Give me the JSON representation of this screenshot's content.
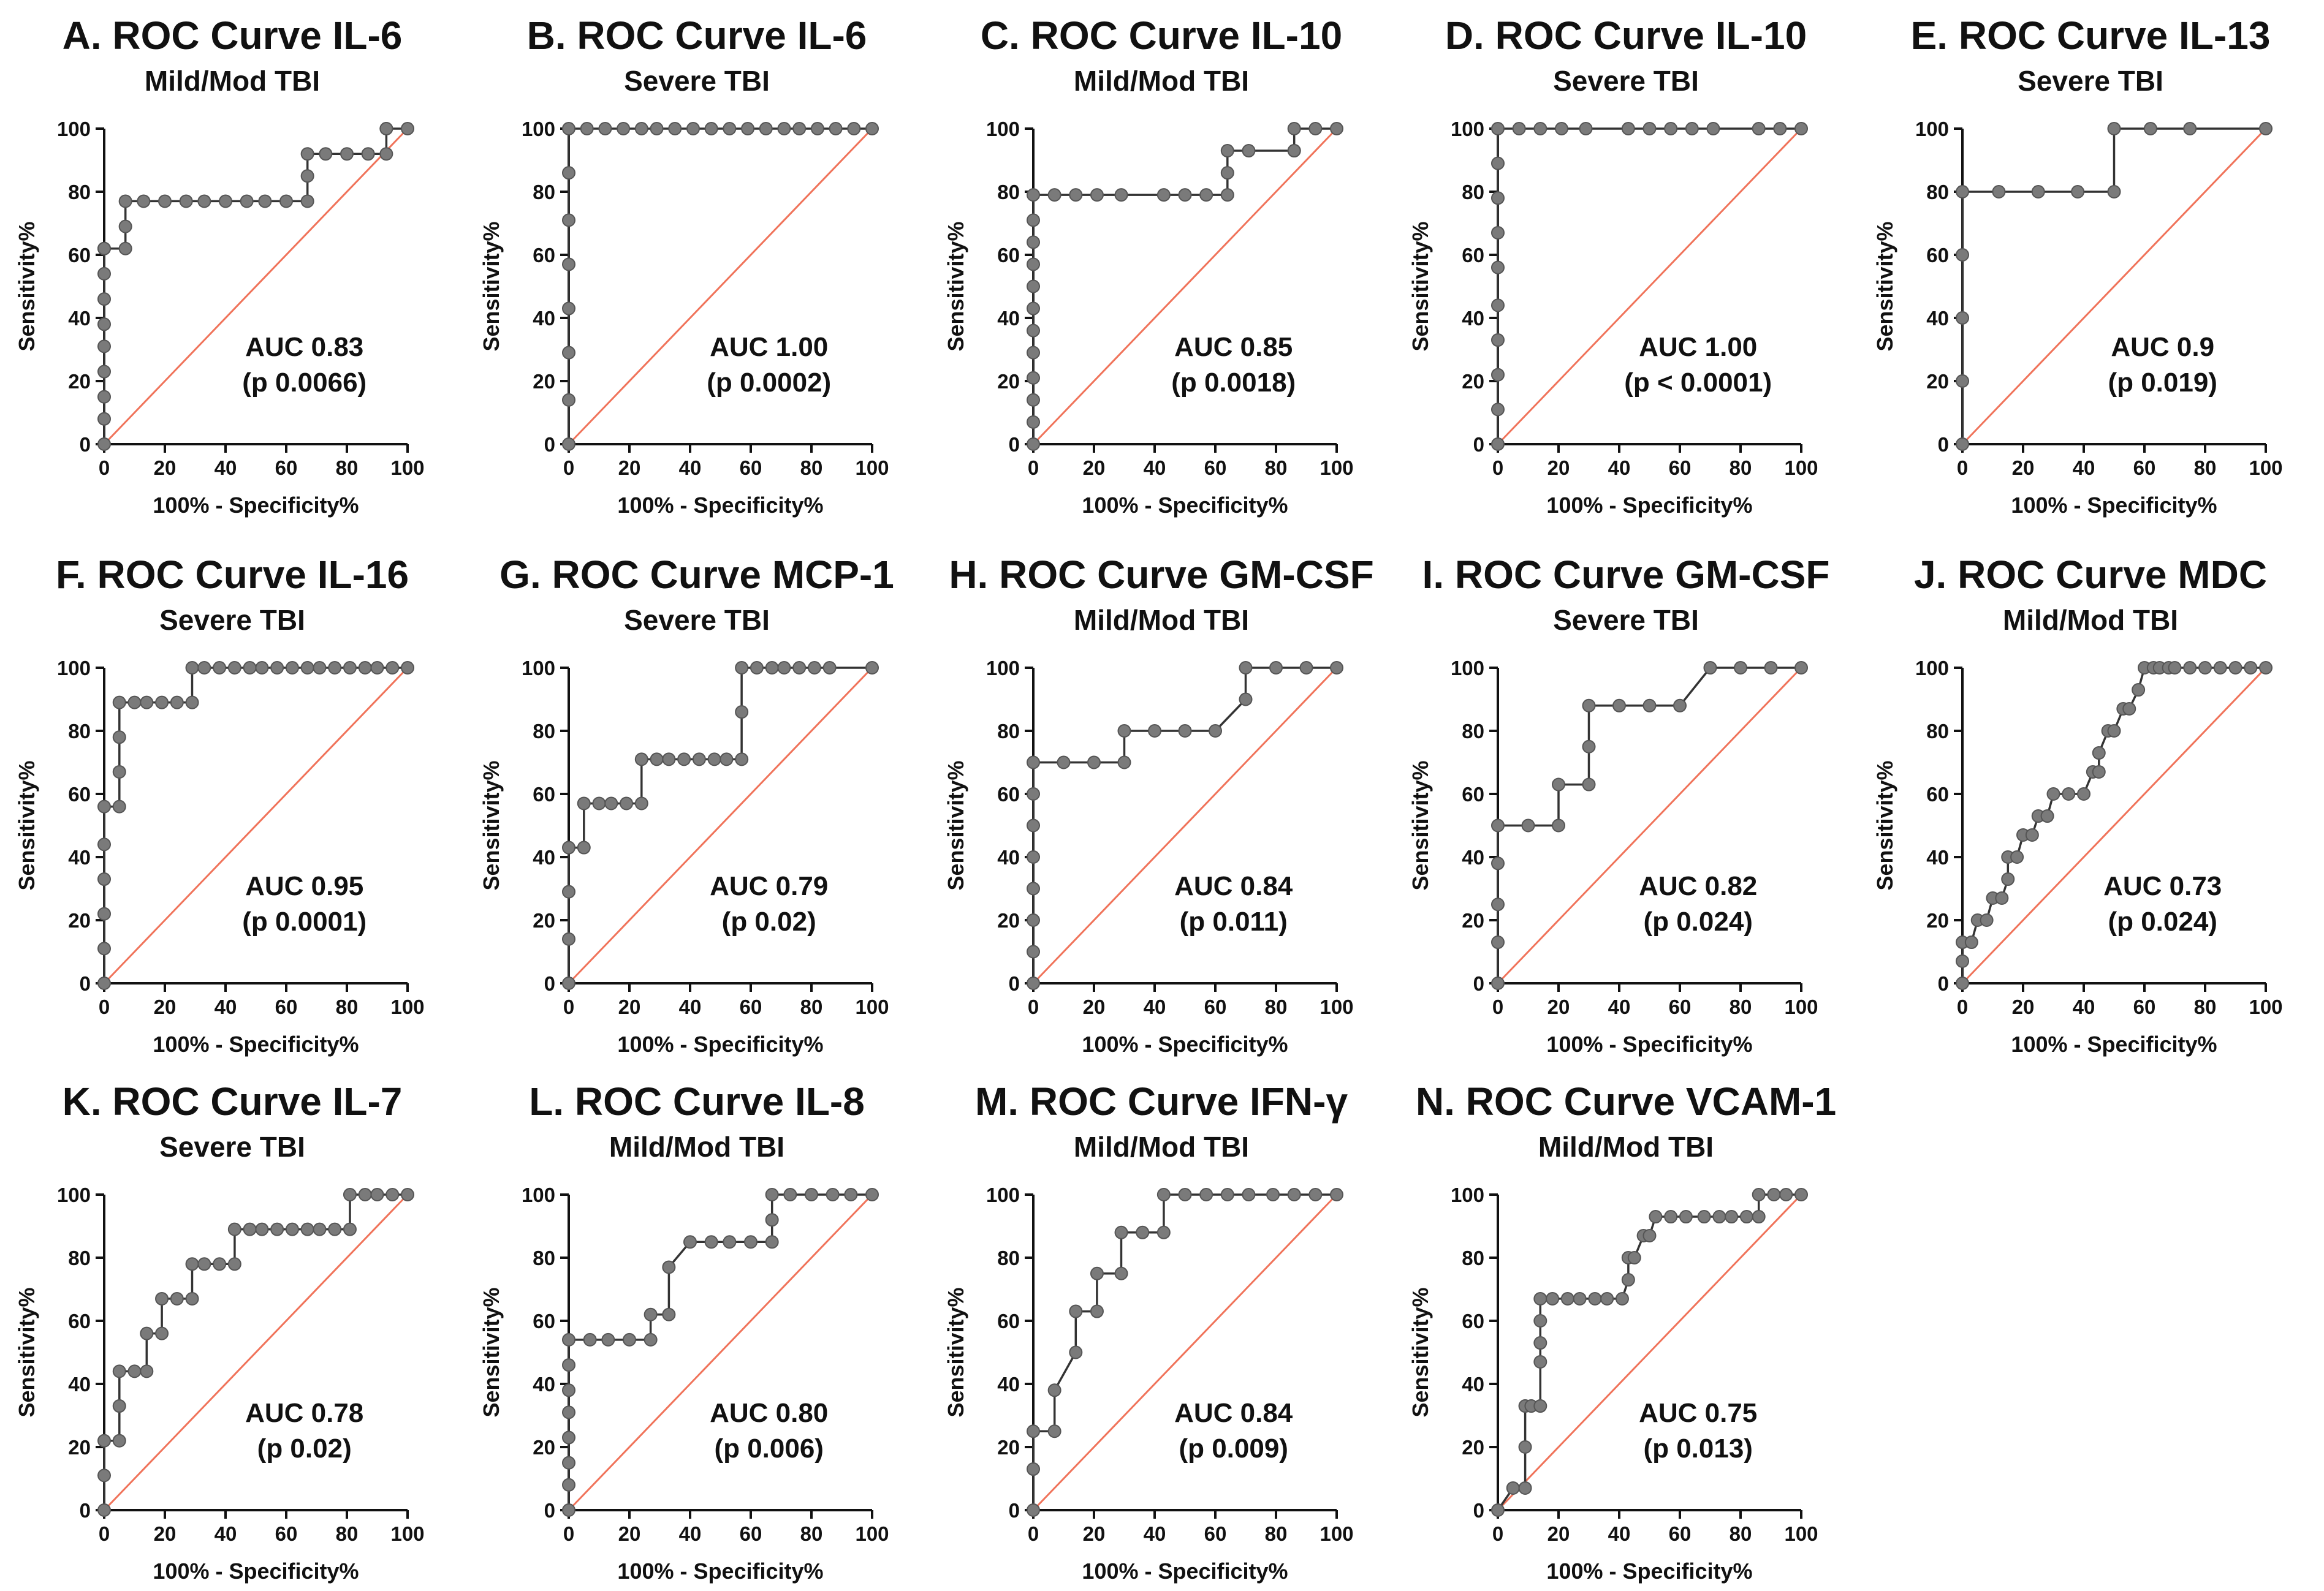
{
  "colors": {
    "curve": "#333333",
    "marker": "#7a7a7a",
    "reference": "#f0735a",
    "axis": "#111111"
  },
  "chart_data": [
    {
      "type": "line",
      "title": "A. ROC Curve IL-6",
      "subtitle": "Mild/Mod TBI",
      "xlabel": "100% - Specificity%",
      "ylabel": "Sensitivity%",
      "xlim": [
        0,
        100
      ],
      "ylim": [
        0,
        100
      ],
      "xticks": [
        "0",
        "20",
        "40",
        "60",
        "80",
        "100"
      ],
      "yticks": [
        "0",
        "20",
        "40",
        "60",
        "80",
        "100"
      ],
      "auc_text": "AUC 0.83",
      "p_text": "(p 0.0066)",
      "x": [
        0,
        0,
        0,
        0,
        0,
        0,
        0,
        0,
        0,
        0,
        7,
        7,
        7,
        13,
        20,
        27,
        33,
        40,
        47,
        53,
        60,
        67,
        67,
        67,
        73,
        80,
        87,
        93,
        93,
        93,
        100
      ],
      "y": [
        0,
        8,
        15,
        23,
        31,
        38,
        46,
        54,
        62,
        62,
        62,
        69,
        77,
        77,
        77,
        77,
        77,
        77,
        77,
        77,
        77,
        77,
        85,
        92,
        92,
        92,
        92,
        92,
        100,
        100,
        100
      ],
      "reference": {
        "x": [
          0,
          100
        ],
        "y": [
          0,
          100
        ]
      }
    },
    {
      "type": "line",
      "title": "B. ROC Curve IL-6",
      "subtitle": "Severe TBI",
      "xlabel": "100% - Specificity%",
      "ylabel": "Sensitivity%",
      "xlim": [
        0,
        100
      ],
      "ylim": [
        0,
        100
      ],
      "xticks": [
        "0",
        "20",
        "40",
        "60",
        "80",
        "100"
      ],
      "yticks": [
        "0",
        "20",
        "40",
        "60",
        "80",
        "100"
      ],
      "auc_text": "AUC 1.00",
      "p_text": "(p 0.0002)",
      "x": [
        0,
        0,
        0,
        0,
        0,
        0,
        0,
        0,
        6,
        12,
        18,
        24,
        29,
        35,
        41,
        47,
        53,
        59,
        65,
        71,
        76,
        82,
        88,
        94,
        100
      ],
      "y": [
        0,
        14,
        29,
        43,
        57,
        71,
        86,
        100,
        100,
        100,
        100,
        100,
        100,
        100,
        100,
        100,
        100,
        100,
        100,
        100,
        100,
        100,
        100,
        100,
        100
      ],
      "reference": {
        "x": [
          0,
          100
        ],
        "y": [
          0,
          100
        ]
      }
    },
    {
      "type": "line",
      "title": "C. ROC Curve IL-10",
      "subtitle": "Mild/Mod TBI",
      "xlabel": "100% - Specificity%",
      "ylabel": "Sensitivity%",
      "xlim": [
        0,
        100
      ],
      "ylim": [
        0,
        100
      ],
      "xticks": [
        "0",
        "20",
        "40",
        "60",
        "80",
        "100"
      ],
      "yticks": [
        "0",
        "20",
        "40",
        "60",
        "80",
        "100"
      ],
      "auc_text": "AUC 0.85",
      "p_text": "(p 0.0018)",
      "x": [
        0,
        0,
        0,
        0,
        0,
        0,
        0,
        0,
        0,
        0,
        0,
        0,
        7,
        14,
        21,
        29,
        43,
        50,
        57,
        64,
        64,
        64,
        71,
        86,
        86,
        86,
        93,
        100
      ],
      "y": [
        0,
        7,
        14,
        21,
        29,
        36,
        43,
        50,
        57,
        64,
        71,
        79,
        79,
        79,
        79,
        79,
        79,
        79,
        79,
        79,
        86,
        93,
        93,
        93,
        93,
        100,
        100,
        100
      ],
      "reference": {
        "x": [
          0,
          100
        ],
        "y": [
          0,
          100
        ]
      }
    },
    {
      "type": "line",
      "title": "D. ROC Curve IL-10",
      "subtitle": "Severe TBI",
      "xlabel": "100% - Specificity%",
      "ylabel": "Sensitivity%",
      "xlim": [
        0,
        100
      ],
      "ylim": [
        0,
        100
      ],
      "xticks": [
        "0",
        "20",
        "40",
        "60",
        "80",
        "100"
      ],
      "yticks": [
        "0",
        "20",
        "40",
        "60",
        "80",
        "100"
      ],
      "auc_text": "AUC 1.00",
      "p_text": "(p < 0.0001)",
      "x": [
        0,
        0,
        0,
        0,
        0,
        0,
        0,
        0,
        0,
        0,
        7,
        14,
        21,
        29,
        43,
        50,
        57,
        64,
        71,
        86,
        93,
        100
      ],
      "y": [
        0,
        11,
        22,
        33,
        44,
        56,
        67,
        78,
        89,
        100,
        100,
        100,
        100,
        100,
        100,
        100,
        100,
        100,
        100,
        100,
        100,
        100
      ],
      "reference": {
        "x": [
          0,
          100
        ],
        "y": [
          0,
          100
        ]
      }
    },
    {
      "type": "line",
      "title": "E. ROC Curve IL-13",
      "subtitle": "Severe TBI",
      "xlabel": "100% - Specificity%",
      "ylabel": "Sensitivity%",
      "xlim": [
        0,
        100
      ],
      "ylim": [
        0,
        100
      ],
      "xticks": [
        "0",
        "20",
        "40",
        "60",
        "80",
        "100"
      ],
      "yticks": [
        "0",
        "20",
        "40",
        "60",
        "80",
        "100"
      ],
      "auc_text": "AUC 0.9",
      "p_text": "(p 0.019)",
      "x": [
        0,
        0,
        0,
        0,
        0,
        12,
        25,
        38,
        50,
        50,
        62,
        75,
        100
      ],
      "y": [
        0,
        20,
        40,
        60,
        80,
        80,
        80,
        80,
        80,
        100,
        100,
        100,
        100
      ],
      "reference": {
        "x": [
          0,
          100
        ],
        "y": [
          0,
          100
        ]
      }
    },
    {
      "type": "line",
      "title": "F. ROC Curve IL-16",
      "subtitle": "Severe TBI",
      "xlabel": "100% - Specificity%",
      "ylabel": "Sensitivity%",
      "xlim": [
        0,
        100
      ],
      "ylim": [
        0,
        100
      ],
      "xticks": [
        "0",
        "20",
        "40",
        "60",
        "80",
        "100"
      ],
      "yticks": [
        "0",
        "20",
        "40",
        "60",
        "80",
        "100"
      ],
      "auc_text": "AUC 0.95",
      "p_text": "(p 0.0001)",
      "x": [
        0,
        0,
        0,
        0,
        0,
        0,
        5,
        5,
        5,
        5,
        10,
        14,
        19,
        24,
        29,
        29,
        33,
        38,
        43,
        48,
        52,
        57,
        62,
        67,
        71,
        76,
        81,
        86,
        90,
        95,
        100
      ],
      "y": [
        0,
        11,
        22,
        33,
        44,
        56,
        56,
        67,
        78,
        89,
        89,
        89,
        89,
        89,
        89,
        100,
        100,
        100,
        100,
        100,
        100,
        100,
        100,
        100,
        100,
        100,
        100,
        100,
        100,
        100,
        100
      ],
      "reference": {
        "x": [
          0,
          100
        ],
        "y": [
          0,
          100
        ]
      }
    },
    {
      "type": "line",
      "title": "G. ROC Curve MCP-1",
      "subtitle": "Severe TBI",
      "xlabel": "100% - Specificity%",
      "ylabel": "Sensitivity%",
      "xlim": [
        0,
        100
      ],
      "ylim": [
        0,
        100
      ],
      "xticks": [
        "0",
        "20",
        "40",
        "60",
        "80",
        "100"
      ],
      "yticks": [
        "0",
        "20",
        "40",
        "60",
        "80",
        "100"
      ],
      "auc_text": "AUC 0.79",
      "p_text": "(p 0.02)",
      "x": [
        0,
        0,
        0,
        0,
        5,
        5,
        10,
        14,
        19,
        24,
        24,
        29,
        33,
        38,
        43,
        48,
        52,
        57,
        57,
        57,
        62,
        67,
        71,
        76,
        81,
        86,
        100
      ],
      "y": [
        0,
        14,
        29,
        43,
        43,
        57,
        57,
        57,
        57,
        57,
        71,
        71,
        71,
        71,
        71,
        71,
        71,
        71,
        86,
        100,
        100,
        100,
        100,
        100,
        100,
        100,
        100
      ],
      "reference": {
        "x": [
          0,
          100
        ],
        "y": [
          0,
          100
        ]
      }
    },
    {
      "type": "line",
      "title": "H. ROC Curve GM-CSF",
      "subtitle": "Mild/Mod TBI",
      "xlabel": "100% - Specificity%",
      "ylabel": "Sensitivity%",
      "xlim": [
        0,
        100
      ],
      "ylim": [
        0,
        100
      ],
      "xticks": [
        "0",
        "20",
        "40",
        "60",
        "80",
        "100"
      ],
      "yticks": [
        "0",
        "20",
        "40",
        "60",
        "80",
        "100"
      ],
      "auc_text": "AUC 0.84",
      "p_text": "(p 0.011)",
      "x": [
        0,
        0,
        0,
        0,
        0,
        0,
        0,
        0,
        10,
        20,
        30,
        30,
        40,
        50,
        60,
        70,
        70,
        80,
        90,
        100
      ],
      "y": [
        0,
        10,
        20,
        30,
        40,
        50,
        60,
        70,
        70,
        70,
        70,
        80,
        80,
        80,
        80,
        90,
        100,
        100,
        100,
        100
      ],
      "reference": {
        "x": [
          0,
          100
        ],
        "y": [
          0,
          100
        ]
      }
    },
    {
      "type": "line",
      "title": "I. ROC Curve GM-CSF",
      "subtitle": "Severe TBI",
      "xlabel": "100% - Specificity%",
      "ylabel": "Sensitivity%",
      "xlim": [
        0,
        100
      ],
      "ylim": [
        0,
        100
      ],
      "xticks": [
        "0",
        "20",
        "40",
        "60",
        "80",
        "100"
      ],
      "yticks": [
        "0",
        "20",
        "40",
        "60",
        "80",
        "100"
      ],
      "auc_text": "AUC 0.82",
      "p_text": "(p 0.024)",
      "x": [
        0,
        0,
        0,
        0,
        0,
        10,
        20,
        20,
        30,
        30,
        30,
        40,
        50,
        60,
        70,
        80,
        90,
        100
      ],
      "y": [
        0,
        13,
        25,
        38,
        50,
        50,
        50,
        63,
        63,
        75,
        88,
        88,
        88,
        88,
        100,
        100,
        100,
        100
      ],
      "reference": {
        "x": [
          0,
          100
        ],
        "y": [
          0,
          100
        ]
      }
    },
    {
      "type": "line",
      "title": "J. ROC Curve MDC",
      "subtitle": "Mild/Mod TBI",
      "xlabel": "100% - Specificity%",
      "ylabel": "Sensitivity%",
      "xlim": [
        0,
        100
      ],
      "ylim": [
        0,
        100
      ],
      "xticks": [
        "0",
        "20",
        "40",
        "60",
        "80",
        "100"
      ],
      "yticks": [
        "0",
        "20",
        "40",
        "60",
        "80",
        "100"
      ],
      "auc_text": "AUC 0.73",
      "p_text": "(p 0.024)",
      "x": [
        0,
        0,
        0,
        3,
        5,
        8,
        10,
        13,
        15,
        15,
        18,
        20,
        23,
        25,
        28,
        30,
        35,
        40,
        43,
        45,
        45,
        48,
        50,
        53,
        55,
        58,
        60,
        63,
        65,
        68,
        70,
        75,
        80,
        85,
        90,
        95,
        100
      ],
      "y": [
        0,
        7,
        13,
        13,
        20,
        20,
        27,
        27,
        33,
        40,
        40,
        47,
        47,
        53,
        53,
        60,
        60,
        60,
        67,
        67,
        73,
        80,
        80,
        87,
        87,
        93,
        100,
        100,
        100,
        100,
        100,
        100,
        100,
        100,
        100,
        100,
        100
      ],
      "reference": {
        "x": [
          0,
          100
        ],
        "y": [
          0,
          100
        ]
      }
    },
    {
      "type": "line",
      "title": "K. ROC Curve IL-7",
      "subtitle": "Severe TBI",
      "xlabel": "100% - Specificity%",
      "ylabel": "Sensitivity%",
      "xlim": [
        0,
        100
      ],
      "ylim": [
        0,
        100
      ],
      "xticks": [
        "0",
        "20",
        "40",
        "60",
        "80",
        "100"
      ],
      "yticks": [
        "0",
        "20",
        "40",
        "60",
        "80",
        "100"
      ],
      "auc_text": "AUC 0.78",
      "p_text": "(p 0.02)",
      "x": [
        0,
        0,
        0,
        5,
        5,
        5,
        10,
        14,
        14,
        19,
        19,
        24,
        29,
        29,
        33,
        38,
        43,
        43,
        48,
        52,
        57,
        62,
        67,
        71,
        76,
        81,
        81,
        86,
        90,
        95,
        100
      ],
      "y": [
        0,
        11,
        22,
        22,
        33,
        44,
        44,
        44,
        56,
        56,
        67,
        67,
        67,
        78,
        78,
        78,
        78,
        89,
        89,
        89,
        89,
        89,
        89,
        89,
        89,
        89,
        100,
        100,
        100,
        100,
        100
      ],
      "reference": {
        "x": [
          0,
          100
        ],
        "y": [
          0,
          100
        ]
      }
    },
    {
      "type": "line",
      "title": "L. ROC Curve IL-8",
      "subtitle": "Mild/Mod TBI",
      "xlabel": "100% - Specificity%",
      "ylabel": "Sensitivity%",
      "xlim": [
        0,
        100
      ],
      "ylim": [
        0,
        100
      ],
      "xticks": [
        "0",
        "20",
        "40",
        "60",
        "80",
        "100"
      ],
      "yticks": [
        "0",
        "20",
        "40",
        "60",
        "80",
        "100"
      ],
      "auc_text": "AUC 0.80",
      "p_text": "(p 0.006)",
      "x": [
        0,
        0,
        0,
        0,
        0,
        0,
        0,
        0,
        7,
        13,
        20,
        27,
        27,
        33,
        33,
        40,
        47,
        53,
        60,
        67,
        67,
        67,
        73,
        80,
        87,
        93,
        100
      ],
      "y": [
        0,
        8,
        15,
        23,
        31,
        38,
        46,
        54,
        54,
        54,
        54,
        54,
        62,
        62,
        77,
        85,
        85,
        85,
        85,
        85,
        92,
        100,
        100,
        100,
        100,
        100,
        100
      ],
      "reference": {
        "x": [
          0,
          100
        ],
        "y": [
          0,
          100
        ]
      }
    },
    {
      "type": "line",
      "title": "M. ROC Curve IFN-γ",
      "subtitle": "Mild/Mod TBI",
      "xlabel": "100% - Specificity%",
      "ylabel": "Sensitivity%",
      "xlim": [
        0,
        100
      ],
      "ylim": [
        0,
        100
      ],
      "xticks": [
        "0",
        "20",
        "40",
        "60",
        "80",
        "100"
      ],
      "yticks": [
        "0",
        "20",
        "40",
        "60",
        "80",
        "100"
      ],
      "auc_text": "AUC 0.84",
      "p_text": "(p 0.009)",
      "x": [
        0,
        0,
        0,
        7,
        7,
        14,
        14,
        21,
        21,
        29,
        29,
        36,
        43,
        43,
        50,
        57,
        64,
        71,
        79,
        86,
        93,
        100
      ],
      "y": [
        0,
        13,
        25,
        25,
        38,
        50,
        63,
        63,
        75,
        75,
        88,
        88,
        88,
        100,
        100,
        100,
        100,
        100,
        100,
        100,
        100,
        100
      ],
      "reference": {
        "x": [
          0,
          100
        ],
        "y": [
          0,
          100
        ]
      }
    },
    {
      "type": "line",
      "title": "N. ROC Curve VCAM-1",
      "subtitle": "Mild/Mod TBI",
      "xlabel": "100% - Specificity%",
      "ylabel": "Sensitivity%",
      "xlim": [
        0,
        100
      ],
      "ylim": [
        0,
        100
      ],
      "xticks": [
        "0",
        "20",
        "40",
        "60",
        "80",
        "100"
      ],
      "yticks": [
        "0",
        "20",
        "40",
        "60",
        "80",
        "100"
      ],
      "auc_text": "AUC 0.75",
      "p_text": "(p 0.013)",
      "x": [
        0,
        5,
        9,
        9,
        9,
        11,
        14,
        14,
        14,
        14,
        14,
        18,
        23,
        27,
        32,
        36,
        41,
        43,
        43,
        45,
        48,
        50,
        52,
        57,
        62,
        68,
        73,
        77,
        82,
        86,
        86,
        91,
        95,
        100
      ],
      "y": [
        0,
        7,
        7,
        20,
        33,
        33,
        33,
        47,
        53,
        60,
        67,
        67,
        67,
        67,
        67,
        67,
        67,
        73,
        80,
        80,
        87,
        87,
        93,
        93,
        93,
        93,
        93,
        93,
        93,
        93,
        100,
        100,
        100,
        100
      ],
      "reference": {
        "x": [
          0,
          100
        ],
        "y": [
          0,
          100
        ]
      }
    }
  ]
}
